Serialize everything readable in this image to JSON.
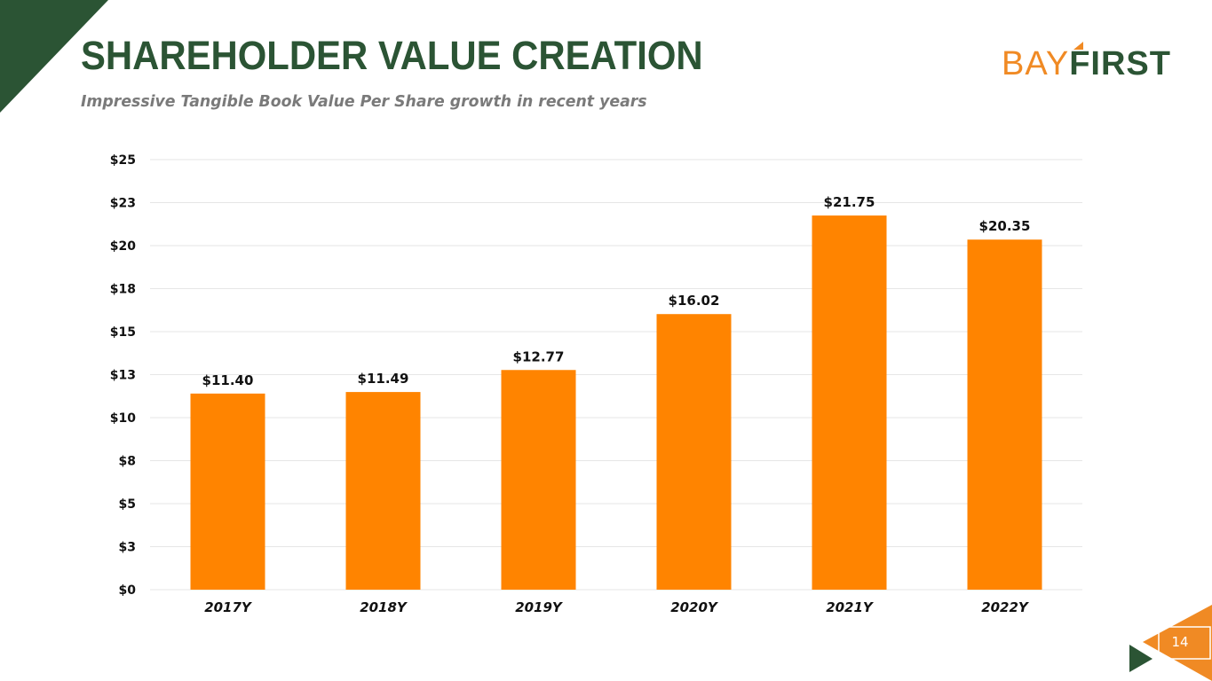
{
  "slide": {
    "title": "SHAREHOLDER VALUE CREATION",
    "subtitle": "Impressive Tangible Book Value Per Share growth in recent years",
    "page_number": "14"
  },
  "logo": {
    "part1": "BAY",
    "part2": "FIRST"
  },
  "colors": {
    "brand_green": "#2b5434",
    "brand_orange": "#ff8400",
    "logo_orange": "#f08a24",
    "gridline": "#e6e6e6",
    "subtitle_gray": "#7a7a7a"
  },
  "chart_data": {
    "type": "bar",
    "title": "",
    "xlabel": "",
    "ylabel": "",
    "categories": [
      "2017Y",
      "2018Y",
      "2019Y",
      "2020Y",
      "2021Y",
      "2022Y"
    ],
    "values": [
      11.4,
      11.49,
      12.77,
      16.02,
      21.75,
      20.35
    ],
    "data_labels": [
      "$11.40",
      "$11.49",
      "$12.77",
      "$16.02",
      "$21.75",
      "$20.35"
    ],
    "y_ticks": [
      0,
      2.5,
      5,
      7.5,
      10,
      12.5,
      15,
      17.5,
      20,
      22.5,
      25
    ],
    "y_tick_labels": [
      "$0",
      "$3",
      "$5",
      "$8",
      "$10",
      "$13",
      "$15",
      "$18",
      "$20",
      "$23",
      "$25"
    ],
    "ylim": [
      0,
      25
    ],
    "grid": true,
    "legend": "none",
    "bar_color": "#ff8400"
  }
}
